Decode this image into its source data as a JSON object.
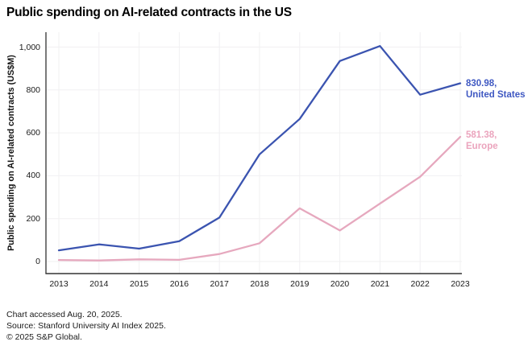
{
  "title": "Public spending on AI-related contracts in the US",
  "chart_data": {
    "type": "line",
    "title": "Public spending on AI-related contracts in the US",
    "xlabel": "",
    "ylabel": "Public spending on AI-related contracts (US$M)",
    "categories": [
      "2013",
      "2014",
      "2015",
      "2016",
      "2017",
      "2018",
      "2019",
      "2020",
      "2021",
      "2022",
      "2023"
    ],
    "series": [
      {
        "name": "United States",
        "values": [
          52,
          80,
          60,
          95,
          205,
          500,
          665,
          935,
          1005,
          778,
          830.98
        ],
        "color": "#3b54b0",
        "label_color": "#3f58c2",
        "end_label_value": "830.98,",
        "end_label_name": "United States"
      },
      {
        "name": "Europe",
        "values": [
          7,
          5,
          10,
          8,
          35,
          85,
          248,
          145,
          270,
          395,
          581.38
        ],
        "color": "#e6a8be",
        "label_color": "#eba4bd",
        "end_label_value": "581.38,",
        "end_label_name": "Europe"
      }
    ],
    "ylim": [
      0,
      1000
    ],
    "yticks": [
      0,
      200,
      400,
      600,
      800,
      1000
    ],
    "ytick_labels": [
      "0",
      "200",
      "400",
      "600",
      "800",
      "1,000"
    ],
    "grid": true,
    "legend_position": "end-of-line-labels"
  },
  "footer": {
    "accessed": "Chart accessed Aug. 20, 2025.",
    "source": "Source: Stanford University AI Index 2025.",
    "copyright": "© 2025 S&P Global."
  },
  "colors": {
    "background": "#ffffff",
    "axis": "#333333",
    "gridline": "#f1f0f2",
    "tick_text": "#1a1a1a",
    "title_text": "#000000"
  }
}
